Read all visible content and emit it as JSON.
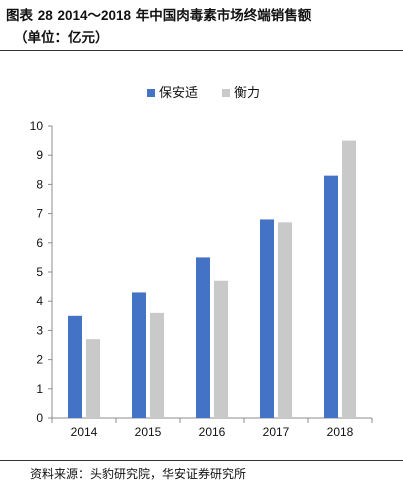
{
  "header": {
    "title_prefix": "图表",
    "title_number": "28",
    "title_years": "2014～2018",
    "title_text": "年中国肉毒素市场终端销售额",
    "subtitle": "（单位：亿元）"
  },
  "footer": {
    "source": "资料来源：头豹研究院，华安证券研究所"
  },
  "chart_data": {
    "type": "bar",
    "categories": [
      "2014",
      "2015",
      "2016",
      "2017",
      "2018"
    ],
    "series": [
      {
        "name": "保安适",
        "values": [
          3.5,
          4.3,
          5.5,
          6.8,
          8.3
        ],
        "color": "#4472C4"
      },
      {
        "name": "衡力",
        "values": [
          2.7,
          3.6,
          4.7,
          6.7,
          9.5
        ],
        "color": "#C9C9C9"
      }
    ],
    "ylim": [
      0,
      10
    ],
    "yticks": [
      0,
      1,
      2,
      3,
      4,
      5,
      6,
      7,
      8,
      9,
      10
    ],
    "xlabel": "",
    "ylabel": "",
    "grid": false,
    "legend_position": "top-center"
  }
}
